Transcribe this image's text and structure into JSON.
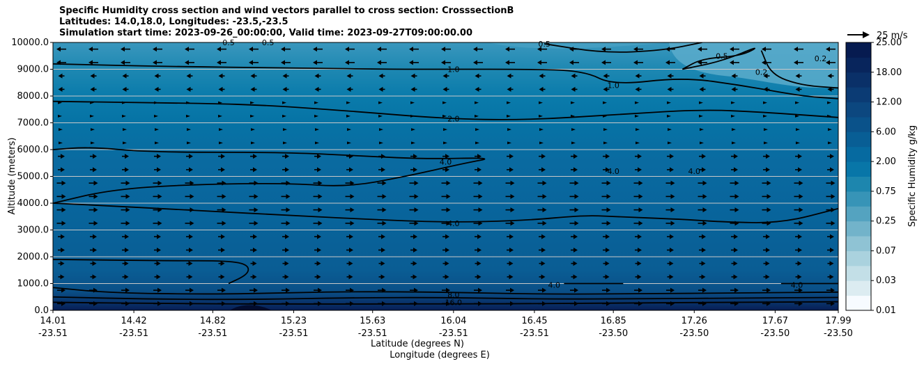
{
  "chart_data": {
    "type": "contour",
    "title": [
      "Specific Humidity cross section and wind vectors parallel to cross section: CrosssectionB",
      "Latitudes: 14.0,18.0, Longitudes: -23.5,-23.5",
      "Simulation start time: 2023-09-26_00:00:00, Valid time: 2023-09-27T09:00:00.00"
    ],
    "xlabel": [
      "Latitude (degrees N)",
      "Longitude (degrees E)"
    ],
    "ylabel": "Altitude (meters)",
    "x_ticks": [
      {
        "lat": "14.01",
        "lon": "-23.51"
      },
      {
        "lat": "14.42",
        "lon": "-23.51"
      },
      {
        "lat": "14.82",
        "lon": "-23.51"
      },
      {
        "lat": "15.23",
        "lon": "-23.51"
      },
      {
        "lat": "15.63",
        "lon": "-23.51"
      },
      {
        "lat": "16.04",
        "lon": "-23.51"
      },
      {
        "lat": "16.45",
        "lon": "-23.51"
      },
      {
        "lat": "16.85",
        "lon": "-23.50"
      },
      {
        "lat": "17.26",
        "lon": "-23.50"
      },
      {
        "lat": "17.67",
        "lon": "-23.50"
      },
      {
        "lat": "17.99",
        "lon": "-23.50"
      }
    ],
    "y_ticks": [
      "0.0",
      "1000.0",
      "2000.0",
      "3000.0",
      "4000.0",
      "5000.0",
      "6000.0",
      "7000.0",
      "8000.0",
      "9000.0",
      "10000.0"
    ],
    "ylim": [
      0,
      10000
    ],
    "grid": "horizontal",
    "colorbar": {
      "label": "Specific Humidity g/kg",
      "ticks": [
        "0.01",
        "0.03",
        "0.07",
        "0.25",
        "0.75",
        "2.00",
        "6.00",
        "12.00",
        "18.00",
        "25.00"
      ],
      "colors": [
        "#f7fbff",
        "#dcecf1",
        "#c3dfe7",
        "#aad2de",
        "#8fc3d4",
        "#72b3ca",
        "#54a3c0",
        "#3794b7",
        "#1d86ae",
        "#0876a8",
        "#066aa0",
        "#085e95",
        "#0a528a",
        "#0c477f",
        "#0b3b74",
        "#0a3068",
        "#08255c",
        "#061b50"
      ]
    },
    "wind_key": "25 m/s",
    "contour_labels": [
      {
        "text": "1.0",
        "x": 16.04,
        "y": 9000
      },
      {
        "text": "1.0",
        "x": 16.85,
        "y": 8400
      },
      {
        "text": "2.0",
        "x": 16.04,
        "y": 7150
      },
      {
        "text": "4.0",
        "x": 16.0,
        "y": 5550
      },
      {
        "text": "4.0",
        "x": 16.85,
        "y": 5200
      },
      {
        "text": "4.0",
        "x": 17.26,
        "y": 5200
      },
      {
        "text": "4.0",
        "x": 16.04,
        "y": 3250
      },
      {
        "text": "4.0",
        "x": 16.55,
        "y": 950
      },
      {
        "text": "4.0",
        "x": 17.78,
        "y": 950
      },
      {
        "text": "8.0",
        "x": 16.04,
        "y": 580
      },
      {
        "text": "16.0",
        "x": 16.04,
        "y": 300
      },
      {
        "text": "0.5",
        "x": 14.9,
        "y": 10000
      },
      {
        "text": "0.5",
        "x": 15.1,
        "y": 10000
      },
      {
        "text": "0.5",
        "x": 16.5,
        "y": 9950
      },
      {
        "text": "0.5",
        "x": 17.4,
        "y": 9500
      },
      {
        "text": "0.2",
        "x": 17.6,
        "y": 8900
      },
      {
        "text": "0.2",
        "x": 17.9,
        "y": 9400
      }
    ],
    "contour_lines": [
      {
        "level": 16.0,
        "points": [
          [
            14.01,
            300
          ],
          [
            14.6,
            250
          ],
          [
            15.2,
            230
          ],
          [
            15.7,
            240
          ],
          [
            16.1,
            240
          ],
          [
            16.5,
            250
          ],
          [
            17.0,
            280
          ],
          [
            17.5,
            300
          ],
          [
            17.99,
            320
          ]
        ]
      },
      {
        "level": 8.0,
        "points": [
          [
            14.01,
            500
          ],
          [
            14.5,
            420
          ],
          [
            15.0,
            400
          ],
          [
            15.5,
            470
          ],
          [
            16.0,
            480
          ],
          [
            16.5,
            420
          ],
          [
            17.0,
            430
          ],
          [
            17.5,
            460
          ],
          [
            17.99,
            480
          ]
        ]
      },
      {
        "level": 4.0,
        "points": [
          [
            14.01,
            850
          ],
          [
            14.3,
            650
          ],
          [
            14.8,
            600
          ],
          [
            15.2,
            650
          ],
          [
            15.5,
            700
          ],
          [
            16.0,
            680
          ],
          [
            16.5,
            600
          ],
          [
            17.0,
            620
          ],
          [
            17.5,
            650
          ],
          [
            17.99,
            680
          ]
        ]
      },
      {
        "level": 4.0,
        "points": [
          [
            14.01,
            1900
          ],
          [
            14.6,
            1850
          ],
          [
            14.9,
            1850
          ],
          [
            15.0,
            1700
          ],
          [
            15.0,
            1350
          ],
          [
            14.9,
            1000
          ]
        ]
      },
      {
        "level": 4.0,
        "points": [
          [
            14.01,
            4000
          ],
          [
            14.3,
            3900
          ],
          [
            14.8,
            3700
          ],
          [
            15.2,
            3550
          ],
          [
            15.6,
            3400
          ],
          [
            16.0,
            3280
          ],
          [
            16.4,
            3350
          ],
          [
            16.7,
            3550
          ],
          [
            16.85,
            3500
          ],
          [
            17.2,
            3400
          ],
          [
            17.4,
            3300
          ],
          [
            17.7,
            3250
          ],
          [
            17.99,
            3800
          ]
        ]
      },
      {
        "level": 4.0,
        "points": [
          [
            14.01,
            4000
          ],
          [
            14.3,
            4500
          ],
          [
            14.7,
            4700
          ],
          [
            15.2,
            4750
          ],
          [
            15.5,
            4600
          ],
          [
            15.8,
            5000
          ],
          [
            16.1,
            5500
          ],
          [
            16.25,
            5700
          ],
          [
            15.9,
            5650
          ],
          [
            15.6,
            5750
          ],
          [
            15.2,
            5900
          ],
          [
            14.5,
            5900
          ],
          [
            14.2,
            6100
          ],
          [
            14.01,
            6000
          ]
        ]
      },
      {
        "level": 4.0,
        "points": [
          [
            16.6,
            1000
          ],
          [
            16.9,
            1000
          ]
        ]
      },
      {
        "level": 4.0,
        "points": [
          [
            17.7,
            1000
          ],
          [
            17.99,
            1000
          ]
        ]
      },
      {
        "level": 2.0,
        "points": [
          [
            14.01,
            7800
          ],
          [
            14.5,
            7750
          ],
          [
            15.0,
            7700
          ],
          [
            15.5,
            7450
          ],
          [
            16.0,
            7150
          ],
          [
            16.4,
            7100
          ],
          [
            16.85,
            7300
          ],
          [
            17.3,
            7500
          ],
          [
            17.6,
            7400
          ],
          [
            17.99,
            7200
          ]
        ]
      },
      {
        "level": 1.0,
        "points": [
          [
            14.01,
            9200
          ],
          [
            14.6,
            9100
          ],
          [
            15.2,
            9050
          ],
          [
            15.7,
            9000
          ],
          [
            16.04,
            9000
          ],
          [
            16.4,
            9000
          ],
          [
            16.7,
            8950
          ],
          [
            16.85,
            8400
          ],
          [
            17.2,
            8700
          ],
          [
            17.5,
            8400
          ],
          [
            17.8,
            8000
          ],
          [
            17.99,
            7900
          ]
        ]
      },
      {
        "level": 0.5,
        "points": [
          [
            16.5,
            9950
          ],
          [
            16.8,
            9600
          ],
          [
            17.1,
            9700
          ],
          [
            17.3,
            10000
          ]
        ]
      },
      {
        "level": 0.5,
        "points": [
          [
            17.2,
            9000
          ],
          [
            17.3,
            9400
          ],
          [
            17.5,
            9500
          ],
          [
            17.6,
            9900
          ],
          [
            17.4,
            9300
          ],
          [
            17.2,
            9000
          ]
        ]
      },
      {
        "level": 0.2,
        "points": [
          [
            17.6,
            9700
          ],
          [
            17.65,
            8800
          ],
          [
            17.8,
            8400
          ],
          [
            17.99,
            8300
          ]
        ]
      }
    ]
  }
}
